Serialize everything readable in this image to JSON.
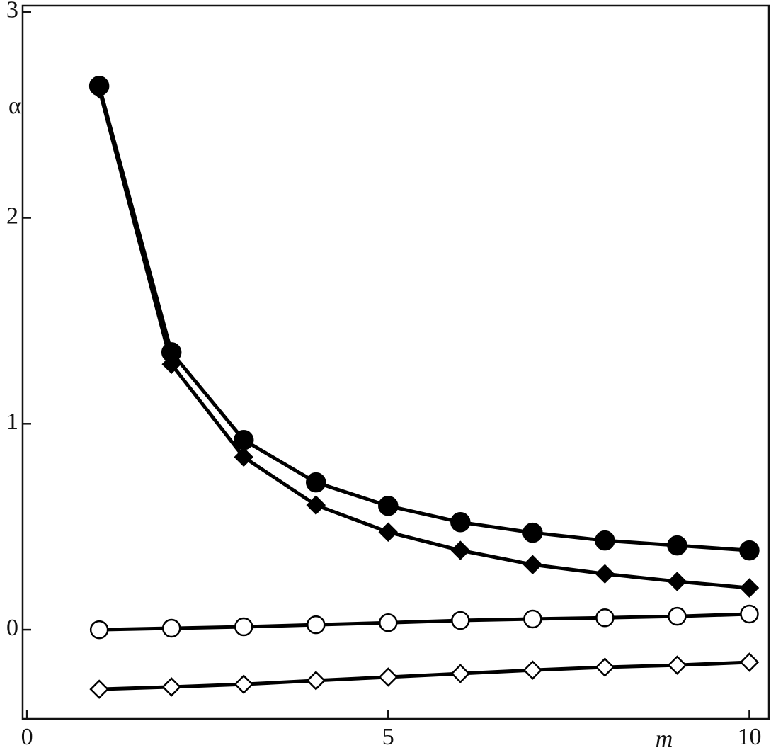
{
  "chart_data": {
    "type": "line",
    "x_label": "m",
    "y_label": "α",
    "x": [
      1,
      2,
      3,
      4,
      5,
      6,
      7,
      8,
      9,
      10
    ],
    "series": [
      {
        "color": "#000000",
        "marker": "filled-circle",
        "values": [
          2.64,
          1.347,
          0.921,
          0.715,
          0.601,
          0.522,
          0.471,
          0.433,
          0.409,
          0.385
        ]
      },
      {
        "color": "#000000",
        "marker": "filled-diamond",
        "values": [
          2.625,
          1.289,
          0.838,
          0.605,
          0.474,
          0.385,
          0.316,
          0.271,
          0.234,
          0.203
        ]
      },
      {
        "color": "#000000",
        "marker": "open-circle",
        "values": [
          0,
          0.007,
          0.014,
          0.024,
          0.034,
          0.045,
          0.052,
          0.058,
          0.065,
          0.076
        ]
      },
      {
        "color": "#000000",
        "marker": "open-diamond",
        "values": [
          -0.289,
          -0.278,
          -0.265,
          -0.247,
          -0.23,
          -0.213,
          -0.196,
          -0.182,
          -0.172,
          -0.158
        ]
      }
    ],
    "xlim": [
      -0.06,
      10.27
    ],
    "ylim": [
      -0.433,
      3.03
    ],
    "xticks": [
      0,
      5,
      10
    ],
    "yticks": [
      0,
      1,
      2,
      3
    ],
    "grid": false
  }
}
